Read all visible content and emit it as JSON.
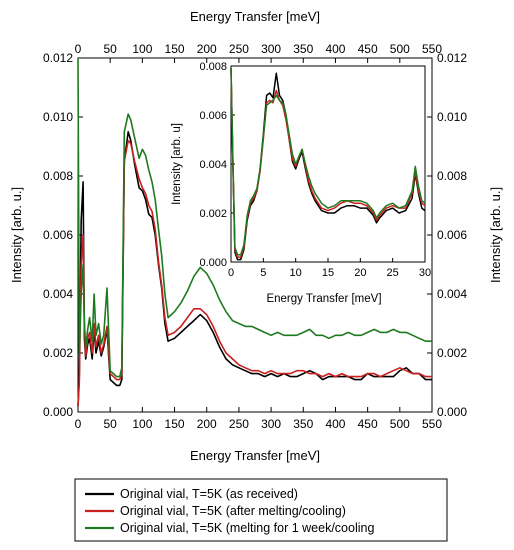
{
  "chart_data": [
    {
      "type": "line",
      "xlabel": "Energy Transfer [meV]",
      "x2label": "Energy Transfer [meV]",
      "ylabel": "Intensity [arb. u.]",
      "y2label": "Intensity [arb. u.]",
      "xlim": [
        0,
        550
      ],
      "ylim": [
        0,
        0.012
      ],
      "xticks": [
        "0",
        "50",
        "100",
        "150",
        "200",
        "250",
        "300",
        "350",
        "400",
        "450",
        "500",
        "550"
      ],
      "yticks": [
        "0.000",
        "0.002",
        "0.004",
        "0.006",
        "0.008",
        "0.010",
        "0.012"
      ],
      "grid": false,
      "legend_position": "bottom-outside",
      "series": [
        {
          "name": "Original vial, T=5K (as received)",
          "color": "#000000",
          "x": [
            0,
            2,
            5,
            8,
            10,
            12,
            15,
            18,
            22,
            25,
            28,
            32,
            36,
            40,
            45,
            50,
            55,
            60,
            65,
            68,
            72,
            78,
            82,
            88,
            95,
            100,
            105,
            110,
            115,
            120,
            125,
            130,
            135,
            140,
            150,
            160,
            170,
            180,
            190,
            200,
            210,
            220,
            230,
            240,
            250,
            260,
            270,
            280,
            290,
            300,
            310,
            320,
            330,
            340,
            350,
            360,
            370,
            380,
            390,
            400,
            410,
            420,
            430,
            440,
            450,
            460,
            470,
            480,
            490,
            500,
            510,
            520,
            530,
            540,
            550
          ],
          "y": [
            0.0002,
            0.0012,
            0.0065,
            0.0078,
            0.0025,
            0.0018,
            0.0023,
            0.0025,
            0.0018,
            0.0028,
            0.002,
            0.0024,
            0.0019,
            0.0022,
            0.0028,
            0.0011,
            0.001,
            0.0009,
            0.0009,
            0.0011,
            0.0085,
            0.0095,
            0.0092,
            0.0084,
            0.0076,
            0.0075,
            0.0072,
            0.0067,
            0.0066,
            0.006,
            0.005,
            0.0042,
            0.003,
            0.0024,
            0.0025,
            0.0027,
            0.0029,
            0.0031,
            0.0033,
            0.0031,
            0.0027,
            0.0022,
            0.0018,
            0.0016,
            0.0015,
            0.0014,
            0.0013,
            0.0013,
            0.0012,
            0.0013,
            0.0012,
            0.0013,
            0.0012,
            0.0012,
            0.0013,
            0.0014,
            0.0013,
            0.0011,
            0.0012,
            0.0012,
            0.0012,
            0.0012,
            0.0011,
            0.0011,
            0.0013,
            0.0012,
            0.0012,
            0.0012,
            0.0012,
            0.0014,
            0.0015,
            0.0013,
            0.0013,
            0.0011,
            0.0011
          ]
        },
        {
          "name": "Original vial, T=5K (after melting/cooling)",
          "color": "#c8201e",
          "x": [
            0,
            2,
            5,
            8,
            10,
            12,
            15,
            18,
            22,
            25,
            28,
            32,
            36,
            40,
            45,
            50,
            55,
            60,
            65,
            68,
            72,
            78,
            82,
            88,
            95,
            100,
            105,
            110,
            115,
            120,
            125,
            130,
            135,
            140,
            150,
            160,
            170,
            180,
            190,
            200,
            210,
            220,
            230,
            240,
            250,
            260,
            270,
            280,
            290,
            300,
            310,
            320,
            330,
            340,
            350,
            360,
            370,
            380,
            390,
            400,
            410,
            420,
            430,
            440,
            450,
            460,
            470,
            480,
            490,
            500,
            510,
            520,
            530,
            540,
            550
          ],
          "y": [
            0.0002,
            0.001,
            0.005,
            0.006,
            0.0028,
            0.0019,
            0.0025,
            0.0027,
            0.002,
            0.003,
            0.0022,
            0.0026,
            0.002,
            0.0023,
            0.0029,
            0.0013,
            0.0012,
            0.0011,
            0.0011,
            0.0013,
            0.0085,
            0.0092,
            0.0091,
            0.0085,
            0.0079,
            0.0076,
            0.0074,
            0.007,
            0.0068,
            0.0062,
            0.0051,
            0.0043,
            0.0032,
            0.0026,
            0.0027,
            0.0029,
            0.0032,
            0.0035,
            0.0035,
            0.0033,
            0.0029,
            0.0024,
            0.002,
            0.0018,
            0.0016,
            0.0015,
            0.0014,
            0.0014,
            0.0013,
            0.0014,
            0.0013,
            0.0013,
            0.0013,
            0.0014,
            0.0014,
            0.0013,
            0.0013,
            0.0012,
            0.0013,
            0.0012,
            0.0013,
            0.0012,
            0.0012,
            0.0012,
            0.0013,
            0.0013,
            0.0012,
            0.0013,
            0.0014,
            0.0015,
            0.0014,
            0.0013,
            0.0013,
            0.0012,
            0.0012
          ]
        },
        {
          "name": "Original vial, T=5K (melting for 1 week/cooling",
          "color": "#1e7a1e",
          "x": [
            0,
            2,
            5,
            8,
            10,
            12,
            15,
            18,
            22,
            25,
            28,
            32,
            36,
            40,
            45,
            50,
            55,
            60,
            65,
            68,
            72,
            78,
            82,
            88,
            95,
            100,
            105,
            110,
            115,
            120,
            125,
            130,
            135,
            140,
            150,
            160,
            170,
            180,
            190,
            200,
            210,
            220,
            230,
            240,
            250,
            260,
            270,
            280,
            290,
            300,
            310,
            320,
            330,
            340,
            350,
            360,
            370,
            380,
            390,
            400,
            410,
            420,
            430,
            440,
            450,
            460,
            470,
            480,
            490,
            500,
            510,
            520,
            530,
            540,
            550
          ],
          "y": [
            0.012,
            0.002,
            0.004,
            0.005,
            0.003,
            0.0022,
            0.0028,
            0.0032,
            0.0024,
            0.004,
            0.0026,
            0.003,
            0.0023,
            0.0026,
            0.0042,
            0.0014,
            0.0013,
            0.0012,
            0.0012,
            0.0015,
            0.0095,
            0.0101,
            0.0099,
            0.0093,
            0.0086,
            0.0089,
            0.0087,
            0.0082,
            0.0078,
            0.0072,
            0.0062,
            0.0053,
            0.004,
            0.0032,
            0.0034,
            0.0037,
            0.0041,
            0.0046,
            0.0049,
            0.0047,
            0.0043,
            0.0038,
            0.0034,
            0.0031,
            0.003,
            0.0029,
            0.0029,
            0.0028,
            0.0027,
            0.0026,
            0.0027,
            0.0026,
            0.0026,
            0.0026,
            0.0027,
            0.0028,
            0.0026,
            0.0026,
            0.0025,
            0.0026,
            0.0026,
            0.0027,
            0.0026,
            0.0026,
            0.0027,
            0.0028,
            0.0027,
            0.0027,
            0.0028,
            0.0027,
            0.0027,
            0.0026,
            0.0025,
            0.0024,
            0.0024
          ]
        }
      ]
    },
    {
      "type": "line",
      "xlabel": "Energy Transfer [meV]",
      "ylabel": "Intensity [arb. u]",
      "xlim": [
        0,
        30
      ],
      "ylim": [
        0,
        0.008
      ],
      "xticks": [
        "0",
        "5",
        "10",
        "15",
        "20",
        "25",
        "30"
      ],
      "yticks": [
        "0.000",
        "0.002",
        "0.004",
        "0.006",
        "0.008"
      ],
      "grid": false,
      "series": [
        {
          "color": "#000000",
          "x": [
            0,
            0.3,
            0.6,
            1,
            1.5,
            2,
            2.5,
            3,
            3.5,
            4,
            4.5,
            5,
            5.5,
            6,
            6.5,
            7,
            7.5,
            8,
            8.5,
            9,
            9.5,
            10,
            10.5,
            11,
            11.5,
            12,
            12.5,
            13,
            14,
            15,
            16,
            17,
            18,
            19,
            20,
            21,
            22,
            22.5,
            23,
            24,
            25,
            26,
            27,
            28,
            28.5,
            29,
            29.5,
            30
          ],
          "y": [
            0.0079,
            0.004,
            0.0004,
            0.0001,
            0.0001,
            0.0005,
            0.0017,
            0.0023,
            0.0025,
            0.0029,
            0.0038,
            0.0052,
            0.0068,
            0.0069,
            0.0067,
            0.0077,
            0.0068,
            0.0066,
            0.006,
            0.005,
            0.0041,
            0.0038,
            0.0042,
            0.0045,
            0.0038,
            0.0032,
            0.0028,
            0.0025,
            0.0021,
            0.002,
            0.002,
            0.0022,
            0.0023,
            0.0023,
            0.0022,
            0.0022,
            0.0019,
            0.0016,
            0.0018,
            0.0021,
            0.0022,
            0.002,
            0.0021,
            0.0026,
            0.0036,
            0.0028,
            0.0022,
            0.0021
          ]
        },
        {
          "color": "#c8201e",
          "x": [
            0,
            0.3,
            0.6,
            1,
            1.5,
            2,
            2.5,
            3,
            3.5,
            4,
            4.5,
            5,
            5.5,
            6,
            6.5,
            7,
            7.5,
            8,
            8.5,
            9,
            9.5,
            10,
            10.5,
            11,
            11.5,
            12,
            12.5,
            13,
            14,
            15,
            16,
            17,
            18,
            19,
            20,
            21,
            22,
            22.5,
            23,
            24,
            25,
            26,
            27,
            28,
            28.5,
            29,
            29.5,
            30
          ],
          "y": [
            0.0079,
            0.004,
            0.0005,
            0.0002,
            0.0002,
            0.0006,
            0.0018,
            0.0024,
            0.0026,
            0.0029,
            0.0037,
            0.005,
            0.0065,
            0.0066,
            0.0065,
            0.007,
            0.0066,
            0.0064,
            0.0058,
            0.005,
            0.0042,
            0.0039,
            0.0043,
            0.0046,
            0.0039,
            0.0033,
            0.0029,
            0.0026,
            0.0022,
            0.0021,
            0.0022,
            0.0024,
            0.0025,
            0.0024,
            0.0024,
            0.0023,
            0.002,
            0.0017,
            0.0019,
            0.0022,
            0.0023,
            0.0022,
            0.0022,
            0.0028,
            0.0037,
            0.0029,
            0.0024,
            0.0023
          ]
        },
        {
          "color": "#1e7a1e",
          "x": [
            0,
            0.3,
            0.6,
            1,
            1.5,
            2,
            2.5,
            3,
            3.5,
            4,
            4.5,
            5,
            5.5,
            6,
            6.5,
            7,
            7.5,
            8,
            8.5,
            9,
            9.5,
            10,
            10.5,
            11,
            11.5,
            12,
            12.5,
            13,
            14,
            15,
            16,
            17,
            18,
            19,
            20,
            21,
            22,
            22.5,
            23,
            24,
            25,
            26,
            27,
            28,
            28.5,
            29,
            29.5,
            30
          ],
          "y": [
            0.0079,
            0.0042,
            0.0006,
            0.0003,
            0.0003,
            0.0007,
            0.0019,
            0.0025,
            0.0027,
            0.003,
            0.0038,
            0.0051,
            0.0064,
            0.0065,
            0.0066,
            0.0068,
            0.0066,
            0.0065,
            0.006,
            0.0052,
            0.0044,
            0.004,
            0.0043,
            0.0046,
            0.004,
            0.0035,
            0.0031,
            0.0028,
            0.0024,
            0.0022,
            0.0023,
            0.0025,
            0.0025,
            0.0025,
            0.0025,
            0.0024,
            0.0021,
            0.0018,
            0.002,
            0.0023,
            0.0024,
            0.0022,
            0.0023,
            0.0029,
            0.0039,
            0.0031,
            0.0025,
            0.0024
          ]
        }
      ]
    }
  ]
}
